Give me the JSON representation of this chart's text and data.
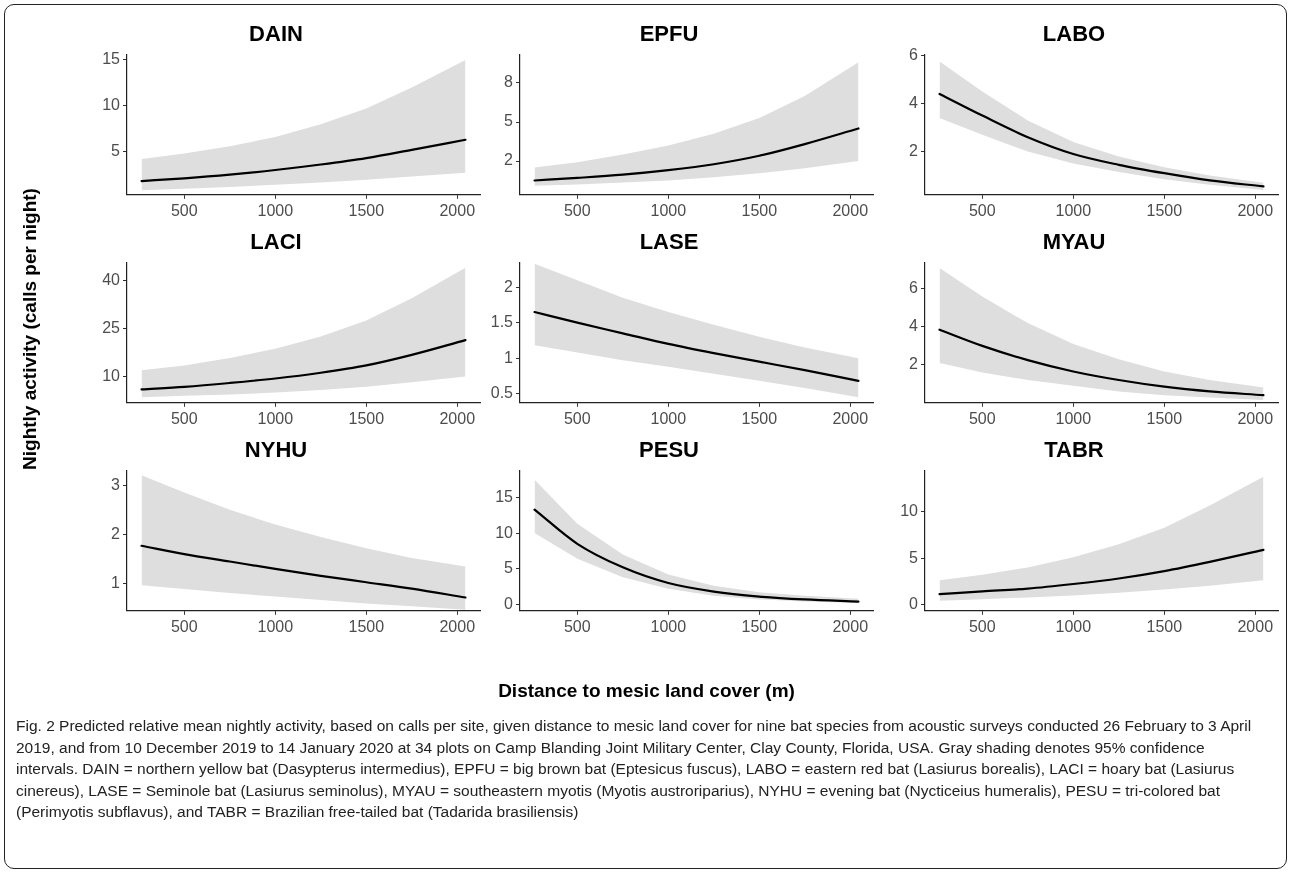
{
  "chart_data": [
    {
      "type": "line",
      "title": "DAIN",
      "x": [
        265,
        500,
        750,
        1000,
        1250,
        1500,
        1750,
        2045
      ],
      "xlim": [
        185,
        2125
      ],
      "xticks": [
        500,
        1000,
        1500,
        2000
      ],
      "ylim": [
        0.3,
        15.6
      ],
      "yticks": [
        5,
        10,
        15
      ],
      "legend": false,
      "marker": "none",
      "line_style": "solid",
      "series": [
        {
          "color": "#000000",
          "values": [
            1.8,
            2.1,
            2.5,
            3.0,
            3.6,
            4.3,
            5.2,
            6.3
          ],
          "lower": [
            0.8,
            0.95,
            1.15,
            1.4,
            1.65,
            1.95,
            2.3,
            2.7
          ],
          "upper": [
            4.2,
            4.8,
            5.6,
            6.6,
            8.0,
            9.7,
            12.0,
            15.0
          ]
        }
      ]
    },
    {
      "type": "line",
      "title": "EPFU",
      "x": [
        265,
        500,
        750,
        1000,
        1250,
        1500,
        1750,
        2045
      ],
      "xlim": [
        185,
        2125
      ],
      "xticks": [
        500,
        1000,
        1500,
        2000
      ],
      "ylim": [
        -0.6,
        10.2
      ],
      "yticks": [
        2,
        5,
        8
      ],
      "legend": false,
      "marker": "none",
      "line_style": "solid",
      "series": [
        {
          "color": "#000000",
          "values": [
            0.5,
            0.7,
            0.95,
            1.3,
            1.75,
            2.4,
            3.3,
            4.5
          ],
          "lower": [
            0.1,
            0.2,
            0.35,
            0.5,
            0.75,
            1.05,
            1.45,
            2.0
          ],
          "upper": [
            1.5,
            1.9,
            2.5,
            3.2,
            4.1,
            5.3,
            7.0,
            9.6
          ]
        }
      ]
    },
    {
      "type": "line",
      "title": "LABO",
      "x": [
        265,
        500,
        750,
        1000,
        1250,
        1500,
        1750,
        2045
      ],
      "xlim": [
        185,
        2125
      ],
      "xticks": [
        500,
        1000,
        1500,
        2000
      ],
      "ylim": [
        0.2,
        6.05
      ],
      "yticks": [
        2,
        4,
        6
      ],
      "legend": false,
      "marker": "none",
      "line_style": "solid",
      "series": [
        {
          "color": "#000000",
          "values": [
            4.4,
            3.5,
            2.6,
            1.9,
            1.45,
            1.1,
            0.8,
            0.55
          ],
          "lower": [
            3.4,
            2.7,
            2.0,
            1.5,
            1.15,
            0.85,
            0.62,
            0.4
          ],
          "upper": [
            5.75,
            4.5,
            3.3,
            2.4,
            1.8,
            1.35,
            1.0,
            0.7
          ]
        }
      ]
    },
    {
      "type": "line",
      "title": "LACI",
      "ylabel": "Nightly activity (calls per night)",
      "x": [
        265,
        500,
        750,
        1000,
        1250,
        1500,
        1750,
        2045
      ],
      "xlim": [
        185,
        2125
      ],
      "xticks": [
        500,
        1000,
        1500,
        2000
      ],
      "ylim": [
        1.8,
        45.7
      ],
      "yticks": [
        10,
        25,
        40
      ],
      "legend": false,
      "marker": "none",
      "line_style": "solid",
      "series": [
        {
          "color": "#000000",
          "values": [
            6,
            6.8,
            8,
            9.4,
            11.2,
            13.5,
            16.8,
            21.4
          ],
          "lower": [
            3.5,
            4,
            4.4,
            5,
            5.8,
            6.8,
            8.2,
            10
          ],
          "upper": [
            12,
            13.5,
            15.8,
            18.7,
            22.5,
            27.5,
            34.5,
            44
          ]
        }
      ]
    },
    {
      "type": "line",
      "title": "LASE",
      "x": [
        265,
        500,
        750,
        1000,
        1250,
        1500,
        1750,
        2045
      ],
      "xlim": [
        185,
        2125
      ],
      "xticks": [
        500,
        1000,
        1500,
        2000
      ],
      "ylim": [
        0.37,
        2.35
      ],
      "yticks": [
        0.5,
        1,
        1.5,
        2
      ],
      "legend": false,
      "marker": "none",
      "line_style": "solid",
      "series": [
        {
          "color": "#000000",
          "values": [
            1.65,
            1.5,
            1.35,
            1.2,
            1.07,
            0.95,
            0.83,
            0.68
          ],
          "lower": [
            1.18,
            1.08,
            0.97,
            0.88,
            0.78,
            0.68,
            0.58,
            0.45
          ],
          "upper": [
            2.33,
            2.1,
            1.85,
            1.65,
            1.47,
            1.3,
            1.15,
            1.0
          ]
        }
      ]
    },
    {
      "type": "line",
      "title": "MYAU",
      "x": [
        265,
        500,
        750,
        1000,
        1250,
        1500,
        1750,
        2045
      ],
      "xlim": [
        185,
        2125
      ],
      "xticks": [
        500,
        1000,
        1500,
        2000
      ],
      "ylim": [
        0,
        7.4
      ],
      "yticks": [
        2,
        4,
        6
      ],
      "legend": false,
      "marker": "none",
      "line_style": "solid",
      "series": [
        {
          "color": "#000000",
          "values": [
            3.85,
            3.0,
            2.25,
            1.65,
            1.2,
            0.85,
            0.6,
            0.4
          ],
          "lower": [
            2.1,
            1.6,
            1.2,
            0.9,
            0.6,
            0.4,
            0.28,
            0.15
          ],
          "upper": [
            7.1,
            5.6,
            4.2,
            3.1,
            2.3,
            1.65,
            1.2,
            0.8
          ]
        }
      ]
    },
    {
      "type": "line",
      "title": "NYHU",
      "x": [
        265,
        500,
        750,
        1000,
        1250,
        1500,
        1750,
        2045
      ],
      "xlim": [
        185,
        2125
      ],
      "xticks": [
        500,
        1000,
        1500,
        2000
      ],
      "ylim": [
        0.45,
        3.3
      ],
      "yticks": [
        1,
        2,
        3
      ],
      "legend": false,
      "marker": "none",
      "line_style": "solid",
      "series": [
        {
          "color": "#000000",
          "values": [
            1.77,
            1.6,
            1.45,
            1.3,
            1.16,
            1.03,
            0.9,
            0.72
          ],
          "lower": [
            0.97,
            0.89,
            0.81,
            0.74,
            0.67,
            0.6,
            0.54,
            0.47
          ],
          "upper": [
            3.2,
            2.85,
            2.5,
            2.2,
            1.95,
            1.72,
            1.52,
            1.35
          ]
        }
      ]
    },
    {
      "type": "line",
      "title": "PESU",
      "xlabel": "Distance to mesic land cover (m)",
      "x": [
        265,
        500,
        750,
        1000,
        1250,
        1500,
        1750,
        2045
      ],
      "xlim": [
        185,
        2125
      ],
      "xticks": [
        500,
        1000,
        1500,
        2000
      ],
      "ylim": [
        -0.9,
        18.8
      ],
      "yticks": [
        0,
        5,
        10,
        15
      ],
      "legend": false,
      "marker": "none",
      "line_style": "solid",
      "series": [
        {
          "color": "#000000",
          "values": [
            13.3,
            8.5,
            5.2,
            3.0,
            1.8,
            1.1,
            0.7,
            0.4
          ],
          "lower": [
            10,
            6.4,
            3.8,
            2.2,
            1.2,
            0.7,
            0.4,
            0.2
          ],
          "upper": [
            17.5,
            11.3,
            7.0,
            4.2,
            2.6,
            1.7,
            1.2,
            0.8
          ]
        }
      ]
    },
    {
      "type": "line",
      "title": "TABR",
      "x": [
        265,
        500,
        750,
        1000,
        1250,
        1500,
        1750,
        2045
      ],
      "xlim": [
        185,
        2125
      ],
      "xticks": [
        500,
        1000,
        1500,
        2000
      ],
      "ylim": [
        -0.7,
        14.5
      ],
      "yticks": [
        0,
        5,
        10
      ],
      "legend": false,
      "marker": "none",
      "line_style": "solid",
      "annotations": [
        "Fig. 2 Predicted relative mean nightly activity, based on calls per site, given distance to mesic land cover for nine bat species from acoustic surveys conducted 26 February to 3 April 2019, and from 10 December 2019 to 14 January 2020 at 34 plots on Camp Blanding Joint Military Center, Clay County, Florida, USA. Gray shading denotes 95% confidence intervals. DAIN = northern yellow bat (Dasypterus intermedius), EPFU = big brown bat (Eptesicus fuscus), LABO = eastern red bat (Lasiurus borealis), LACI = hoary bat (Lasiurus cinereus), LASE = Seminole bat (Lasiurus seminolus), MYAU = southeastern myotis (Myotis austroriparius), NYHU = evening bat (Nycticeius humeralis), PESU = tri-colored bat (Perimyotis subflavus), and TABR = Brazilian free-tailed bat (Tadarida brasiliensis)"
      ],
      "series": [
        {
          "color": "#000000",
          "values": [
            1.1,
            1.4,
            1.7,
            2.2,
            2.8,
            3.6,
            4.6,
            5.9
          ],
          "lower": [
            0.4,
            0.55,
            0.75,
            0.95,
            1.25,
            1.6,
            2.0,
            2.6
          ],
          "upper": [
            2.6,
            3.2,
            4.0,
            5.1,
            6.5,
            8.3,
            10.7,
            13.8
          ]
        }
      ]
    }
  ]
}
